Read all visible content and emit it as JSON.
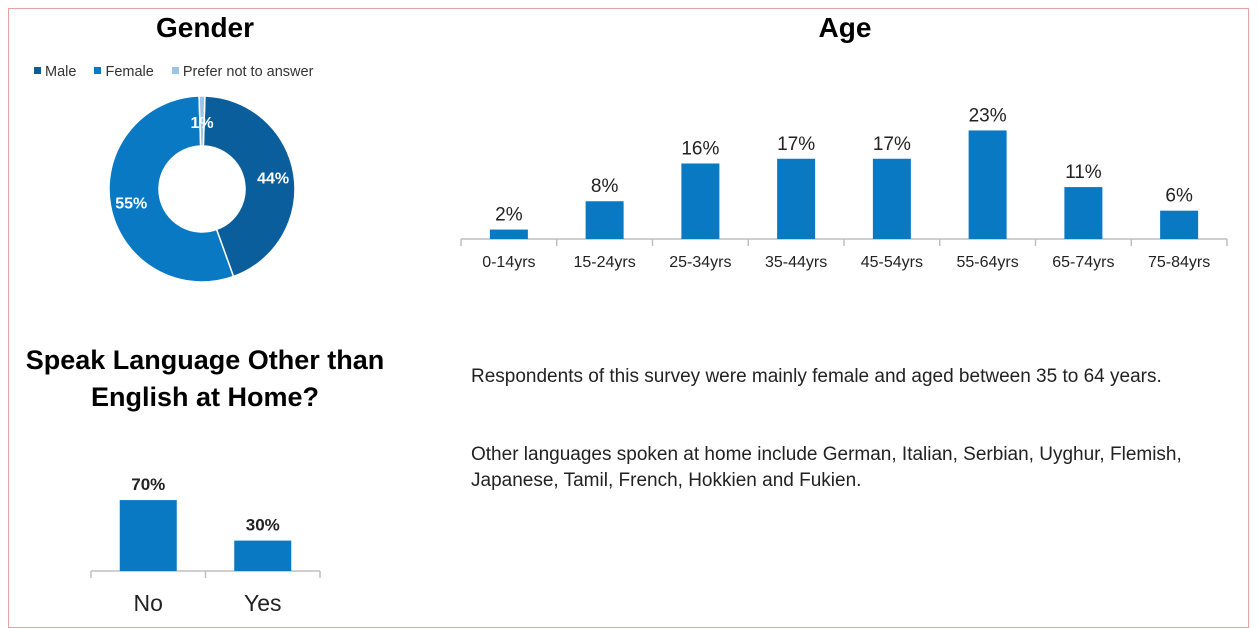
{
  "colors": {
    "male": "#0b5e9c",
    "female": "#0a79c4",
    "prefer_not": "#9dc3e6",
    "bar": "#0a79c4",
    "axis": "#bfbfbf",
    "frame": "#e4a4a4"
  },
  "chart_data": [
    {
      "type": "pie",
      "variant": "donut",
      "title": "Gender",
      "legend_position": "top",
      "slices": [
        {
          "name": "Male",
          "value": 44,
          "label": "44%"
        },
        {
          "name": "Female",
          "value": 55,
          "label": "55%"
        },
        {
          "name": "Prefer not to answer",
          "value": 1,
          "label": "1%"
        }
      ]
    },
    {
      "type": "bar",
      "title": "Age",
      "categories": [
        "0-14yrs",
        "15-24yrs",
        "25-34yrs",
        "35-44yrs",
        "45-54yrs",
        "55-64yrs",
        "65-74yrs",
        "75-84yrs"
      ],
      "values": [
        2,
        8,
        16,
        17,
        17,
        23,
        11,
        6
      ],
      "labels": [
        "2%",
        "8%",
        "16%",
        "17%",
        "17%",
        "23%",
        "11%",
        "6%"
      ],
      "ylim": [
        0,
        25
      ],
      "grid": false
    },
    {
      "type": "bar",
      "title": "Speak Language Other than English at Home?",
      "categories": [
        "No",
        "Yes"
      ],
      "values": [
        70,
        30
      ],
      "labels": [
        "70%",
        "30%"
      ],
      "ylim": [
        0,
        75
      ],
      "grid": false
    }
  ],
  "notes": [
    "Respondents of this survey were mainly female and aged between 35 to 64 years.",
    "Other languages spoken at home include German, Italian, Serbian, Uyghur, Flemish, Japanese, Tamil, French, Hokkien and Fukien."
  ]
}
